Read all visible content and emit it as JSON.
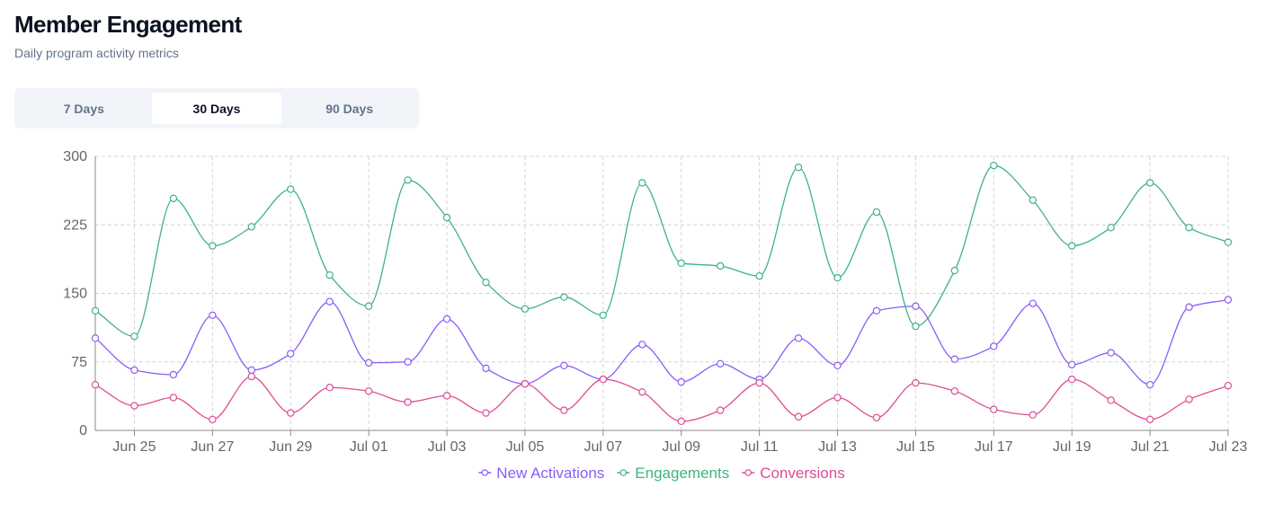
{
  "header": {
    "title": "Member Engagement",
    "subtitle": "Daily program activity metrics"
  },
  "range_tabs": [
    {
      "label": "7 Days",
      "active": false
    },
    {
      "label": "30 Days",
      "active": true
    },
    {
      "label": "90 Days",
      "active": false
    }
  ],
  "chart_data": {
    "type": "line",
    "curve": "smooth",
    "grid": true,
    "grid_style": "dashed",
    "legend_position": "bottom",
    "ylim": [
      0,
      300
    ],
    "y_ticks": [
      0,
      75,
      150,
      225,
      300
    ],
    "x_tick_labels": [
      "Jun 25",
      "Jun 27",
      "Jun 29",
      "Jul 01",
      "Jul 03",
      "Jul 05",
      "Jul 07",
      "Jul 09",
      "Jul 11",
      "Jul 13",
      "Jul 15",
      "Jul 17",
      "Jul 19",
      "Jul 21",
      "Jul 23"
    ],
    "x": [
      "Jun 24",
      "Jun 25",
      "Jun 26",
      "Jun 27",
      "Jun 28",
      "Jun 29",
      "Jun 30",
      "Jul 01",
      "Jul 02",
      "Jul 03",
      "Jul 04",
      "Jul 05",
      "Jul 06",
      "Jul 07",
      "Jul 08",
      "Jul 09",
      "Jul 10",
      "Jul 11",
      "Jul 12",
      "Jul 13",
      "Jul 14",
      "Jul 15",
      "Jul 16",
      "Jul 17",
      "Jul 18",
      "Jul 19",
      "Jul 20",
      "Jul 21",
      "Jul 22",
      "Jul 23"
    ],
    "series": [
      {
        "name": "New Activations",
        "color": "#8b5cf6",
        "values": [
          101,
          66,
          61,
          126,
          66,
          84,
          141,
          74,
          75,
          122,
          68,
          51,
          71,
          56,
          94,
          53,
          73,
          56,
          101,
          71,
          131,
          136,
          78,
          92,
          139,
          72,
          85,
          50,
          135,
          143
        ]
      },
      {
        "name": "Engagements",
        "color": "#3fb37f",
        "values": [
          131,
          103,
          254,
          202,
          223,
          264,
          170,
          136,
          274,
          233,
          162,
          133,
          146,
          126,
          271,
          183,
          180,
          169,
          288,
          167,
          239,
          114,
          175,
          290,
          252,
          202,
          222,
          271,
          222,
          206
        ]
      },
      {
        "name": "Conversions",
        "color": "#de4c94",
        "values": [
          50,
          27,
          36,
          12,
          59,
          19,
          47,
          43,
          31,
          38,
          19,
          51,
          22,
          56,
          42,
          10,
          22,
          52,
          15,
          36,
          14,
          52,
          43,
          23,
          17,
          56,
          33,
          12,
          34,
          49
        ]
      }
    ]
  }
}
